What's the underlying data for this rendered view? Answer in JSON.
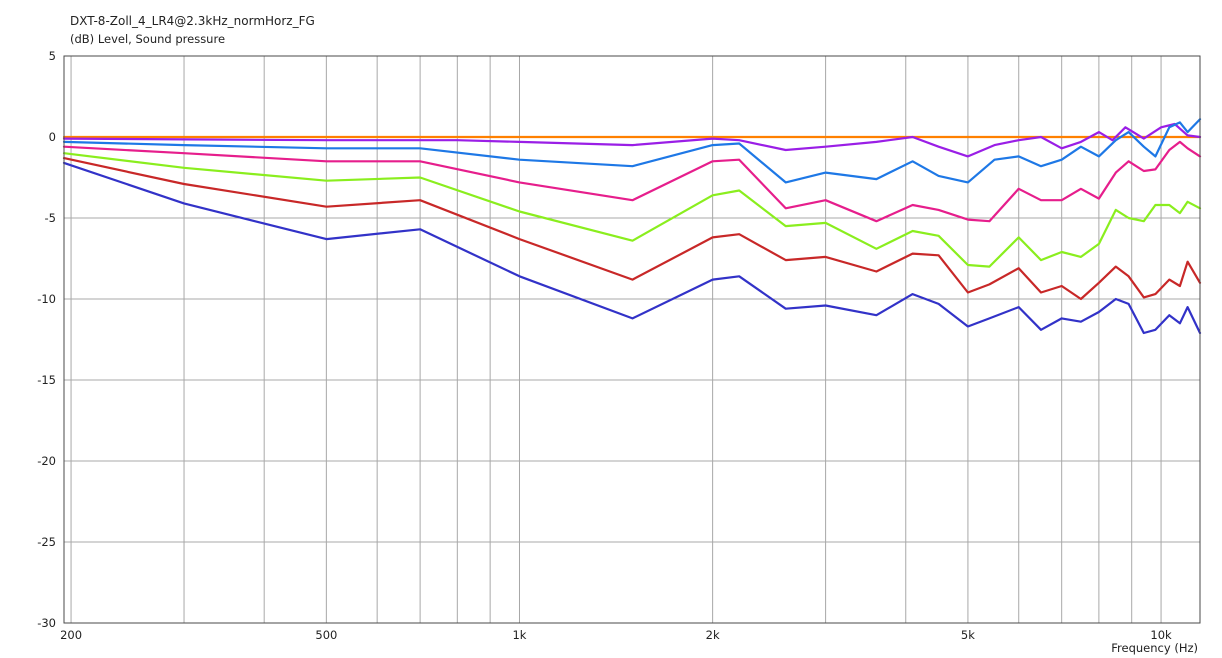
{
  "chart_data": {
    "type": "line",
    "title": "DXT-8-Zoll_4_LR4@2.3kHz_normHorz_FG",
    "ylabel": "(dB)  Level, Sound pressure",
    "xlabel": "Frequency  (Hz)",
    "xscale": "log",
    "xlim": [
      195,
      11500
    ],
    "ylim": [
      -30,
      5
    ],
    "yticks": [
      5,
      0,
      -5,
      -10,
      -15,
      -20,
      -25,
      -30
    ],
    "yticklabels": [
      "5",
      "0",
      "-5",
      "-10",
      "-15",
      "-20",
      "-25",
      "-30"
    ],
    "xticks": [
      200,
      500,
      1000,
      2000,
      5000,
      10000
    ],
    "xticklabels": [
      "200",
      "500",
      "1k",
      "2k",
      "5k",
      "10k"
    ],
    "grid": true,
    "legend": "none",
    "series": [
      {
        "color": "#ff8000",
        "points": [
          [
            195,
            0
          ],
          [
            11500,
            0
          ]
        ]
      },
      {
        "color": "#9a1ee6",
        "points": [
          [
            195,
            -0.1
          ],
          [
            300,
            -0.15
          ],
          [
            500,
            -0.2
          ],
          [
            800,
            -0.2
          ],
          [
            1000,
            -0.3
          ],
          [
            1500,
            -0.5
          ],
          [
            2000,
            -0.1
          ],
          [
            2200,
            -0.2
          ],
          [
            2600,
            -0.8
          ],
          [
            3000,
            -0.6
          ],
          [
            3600,
            -0.3
          ],
          [
            4100,
            0
          ],
          [
            4500,
            -0.6
          ],
          [
            5000,
            -1.2
          ],
          [
            5500,
            -0.5
          ],
          [
            6000,
            -0.2
          ],
          [
            6500,
            0
          ],
          [
            7000,
            -0.7
          ],
          [
            7500,
            -0.3
          ],
          [
            8000,
            0.3
          ],
          [
            8400,
            -0.2
          ],
          [
            8800,
            0.6
          ],
          [
            9400,
            -0.1
          ],
          [
            10000,
            0.6
          ],
          [
            10500,
            0.8
          ],
          [
            11000,
            0.1
          ],
          [
            11500,
            0
          ]
        ]
      },
      {
        "color": "#1e78e6",
        "points": [
          [
            195,
            -0.3
          ],
          [
            300,
            -0.5
          ],
          [
            500,
            -0.7
          ],
          [
            700,
            -0.7
          ],
          [
            1000,
            -1.4
          ],
          [
            1500,
            -1.8
          ],
          [
            2000,
            -0.5
          ],
          [
            2200,
            -0.4
          ],
          [
            2600,
            -2.8
          ],
          [
            3000,
            -2.2
          ],
          [
            3600,
            -2.6
          ],
          [
            4100,
            -1.5
          ],
          [
            4500,
            -2.4
          ],
          [
            5000,
            -2.8
          ],
          [
            5500,
            -1.4
          ],
          [
            6000,
            -1.2
          ],
          [
            6500,
            -1.8
          ],
          [
            7000,
            -1.4
          ],
          [
            7500,
            -0.6
          ],
          [
            8000,
            -1.2
          ],
          [
            8500,
            -0.2
          ],
          [
            8900,
            0.3
          ],
          [
            9400,
            -0.6
          ],
          [
            9800,
            -1.2
          ],
          [
            10300,
            0.6
          ],
          [
            10700,
            0.9
          ],
          [
            11000,
            0.3
          ],
          [
            11500,
            1.1
          ]
        ]
      },
      {
        "color": "#e61e8c",
        "points": [
          [
            195,
            -0.6
          ],
          [
            300,
            -1
          ],
          [
            500,
            -1.5
          ],
          [
            700,
            -1.5
          ],
          [
            1000,
            -2.8
          ],
          [
            1500,
            -3.9
          ],
          [
            2000,
            -1.5
          ],
          [
            2200,
            -1.4
          ],
          [
            2600,
            -4.4
          ],
          [
            3000,
            -3.9
          ],
          [
            3600,
            -5.2
          ],
          [
            4100,
            -4.2
          ],
          [
            4500,
            -4.5
          ],
          [
            5000,
            -5.1
          ],
          [
            5400,
            -5.2
          ],
          [
            6000,
            -3.2
          ],
          [
            6500,
            -3.9
          ],
          [
            7000,
            -3.9
          ],
          [
            7500,
            -3.2
          ],
          [
            8000,
            -3.8
          ],
          [
            8500,
            -2.2
          ],
          [
            8900,
            -1.5
          ],
          [
            9400,
            -2.1
          ],
          [
            9800,
            -2.0
          ],
          [
            10300,
            -0.8
          ],
          [
            10700,
            -0.3
          ],
          [
            11000,
            -0.7
          ],
          [
            11500,
            -1.2
          ]
        ]
      },
      {
        "color": "#8aee1e",
        "points": [
          [
            195,
            -1
          ],
          [
            300,
            -1.9
          ],
          [
            500,
            -2.7
          ],
          [
            700,
            -2.5
          ],
          [
            1000,
            -4.6
          ],
          [
            1500,
            -6.4
          ],
          [
            2000,
            -3.6
          ],
          [
            2200,
            -3.3
          ],
          [
            2600,
            -5.5
          ],
          [
            3000,
            -5.3
          ],
          [
            3600,
            -6.9
          ],
          [
            4100,
            -5.8
          ],
          [
            4500,
            -6.1
          ],
          [
            5000,
            -7.9
          ],
          [
            5400,
            -8.0
          ],
          [
            6000,
            -6.2
          ],
          [
            6500,
            -7.6
          ],
          [
            7000,
            -7.1
          ],
          [
            7500,
            -7.4
          ],
          [
            8000,
            -6.6
          ],
          [
            8500,
            -4.5
          ],
          [
            8900,
            -5.0
          ],
          [
            9400,
            -5.2
          ],
          [
            9800,
            -4.2
          ],
          [
            10300,
            -4.2
          ],
          [
            10700,
            -4.7
          ],
          [
            11000,
            -4.0
          ],
          [
            11500,
            -4.4
          ]
        ]
      },
      {
        "color": "#c82828",
        "points": [
          [
            195,
            -1.3
          ],
          [
            300,
            -2.9
          ],
          [
            500,
            -4.3
          ],
          [
            700,
            -3.9
          ],
          [
            1000,
            -6.3
          ],
          [
            1500,
            -8.8
          ],
          [
            2000,
            -6.2
          ],
          [
            2200,
            -6.0
          ],
          [
            2600,
            -7.6
          ],
          [
            3000,
            -7.4
          ],
          [
            3600,
            -8.3
          ],
          [
            4100,
            -7.2
          ],
          [
            4500,
            -7.3
          ],
          [
            5000,
            -9.6
          ],
          [
            5400,
            -9.1
          ],
          [
            6000,
            -8.1
          ],
          [
            6500,
            -9.6
          ],
          [
            7000,
            -9.2
          ],
          [
            7500,
            -10.0
          ],
          [
            8000,
            -9.0
          ],
          [
            8500,
            -8.0
          ],
          [
            8900,
            -8.6
          ],
          [
            9400,
            -9.9
          ],
          [
            9800,
            -9.7
          ],
          [
            10300,
            -8.8
          ],
          [
            10700,
            -9.2
          ],
          [
            11000,
            -7.7
          ],
          [
            11500,
            -9.0
          ]
        ]
      },
      {
        "color": "#3232c8",
        "points": [
          [
            195,
            -1.6
          ],
          [
            300,
            -4.1
          ],
          [
            500,
            -6.3
          ],
          [
            700,
            -5.7
          ],
          [
            1000,
            -8.6
          ],
          [
            1500,
            -11.2
          ],
          [
            2000,
            -8.8
          ],
          [
            2200,
            -8.6
          ],
          [
            2600,
            -10.6
          ],
          [
            3000,
            -10.4
          ],
          [
            3600,
            -11.0
          ],
          [
            4100,
            -9.7
          ],
          [
            4500,
            -10.3
          ],
          [
            5000,
            -11.7
          ],
          [
            5400,
            -11.2
          ],
          [
            6000,
            -10.5
          ],
          [
            6500,
            -11.9
          ],
          [
            7000,
            -11.2
          ],
          [
            7500,
            -11.4
          ],
          [
            8000,
            -10.8
          ],
          [
            8500,
            -10.0
          ],
          [
            8900,
            -10.3
          ],
          [
            9400,
            -12.1
          ],
          [
            9800,
            -11.9
          ],
          [
            10300,
            -11.0
          ],
          [
            10700,
            -11.5
          ],
          [
            11000,
            -10.5
          ],
          [
            11500,
            -12.1
          ]
        ]
      }
    ]
  }
}
